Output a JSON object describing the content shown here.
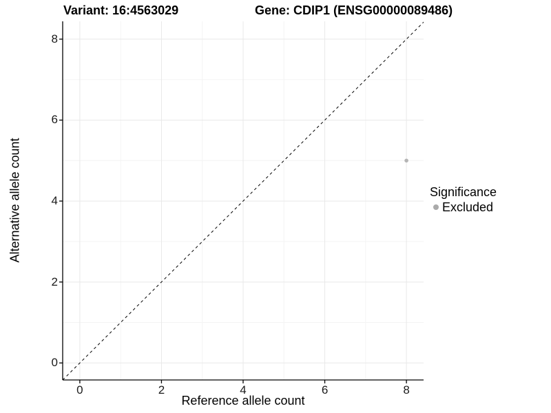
{
  "figure": {
    "title_left": "Variant: 16:4563029",
    "title_right": "Gene: CDIP1 (ENSG00000089486)"
  },
  "chart_data": {
    "type": "scatter",
    "xlabel": "Reference allele count",
    "ylabel": "Alternative allele count",
    "xlim": [
      -0.42,
      8.42
    ],
    "ylim": [
      -0.42,
      8.44
    ],
    "xticks": [
      0,
      2,
      4,
      6,
      8
    ],
    "yticks": [
      0,
      2,
      4,
      6,
      8
    ],
    "minor_xticks": [
      1,
      3,
      5,
      7
    ],
    "minor_yticks": [
      1,
      3,
      5,
      7
    ],
    "grid": true,
    "legend_position": "right",
    "identity_line": {
      "style": "dashed",
      "color": "#000000",
      "from": -0.42,
      "to": 8.44
    },
    "series": [
      {
        "name": "Excluded",
        "color": "#b4b4b4",
        "point_radius": 2.8,
        "points": [
          [
            8,
            5
          ]
        ]
      }
    ],
    "legend": {
      "title": "Significance",
      "items": [
        {
          "label": "Excluded",
          "color": "#aaaaaa"
        }
      ]
    },
    "colors": {
      "axis": "#000000",
      "tick_text": "#1a1a1a",
      "grid_major": "#e8e8e8",
      "grid_minor": "#f4f4f4",
      "background": "#ffffff"
    }
  }
}
